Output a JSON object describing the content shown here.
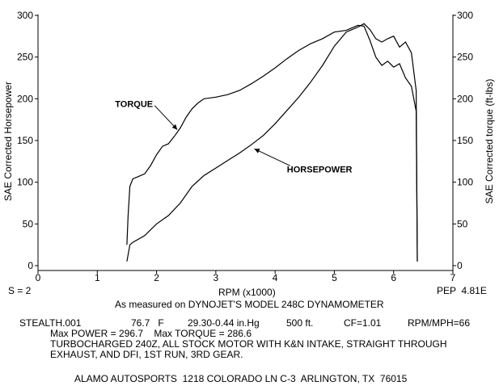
{
  "chart_data": {
    "type": "line",
    "xlabel": "RPM (x1000)",
    "ylabel": "SAE Corrected Horsepower",
    "y2label": "SAE Corrected torque (ft-lbs)",
    "xlim": [
      0,
      7
    ],
    "ylim": [
      0,
      300
    ],
    "y2lim": [
      0,
      300
    ],
    "x_ticks": [
      0,
      1,
      2,
      3,
      4,
      5,
      6,
      7
    ],
    "y_ticks": [
      0,
      50,
      100,
      150,
      200,
      250,
      300
    ],
    "grid": false,
    "series": [
      {
        "name": "TORQUE",
        "x": [
          1.5,
          1.52,
          1.55,
          1.6,
          1.7,
          1.8,
          1.9,
          2.0,
          2.1,
          2.2,
          2.3,
          2.4,
          2.5,
          2.6,
          2.7,
          2.8,
          3.0,
          3.2,
          3.4,
          3.6,
          3.8,
          4.0,
          4.2,
          4.4,
          4.6,
          4.8,
          5.0,
          5.2,
          5.4,
          5.5,
          5.6,
          5.7,
          5.8,
          5.9,
          6.0,
          6.1,
          6.2,
          6.3,
          6.38,
          6.4
        ],
        "values": [
          25,
          60,
          95,
          104,
          107,
          110,
          120,
          133,
          143,
          146,
          155,
          165,
          178,
          188,
          195,
          200,
          202,
          205,
          210,
          218,
          227,
          237,
          248,
          258,
          266,
          272,
          280,
          282,
          288,
          287,
          270,
          250,
          240,
          245,
          238,
          242,
          225,
          215,
          185,
          5
        ]
      },
      {
        "name": "HORSEPOWER",
        "x": [
          1.5,
          1.55,
          1.6,
          1.8,
          2.0,
          2.2,
          2.4,
          2.6,
          2.8,
          3.0,
          3.2,
          3.4,
          3.6,
          3.8,
          4.0,
          4.2,
          4.4,
          4.6,
          4.8,
          5.0,
          5.2,
          5.4,
          5.5,
          5.6,
          5.7,
          5.8,
          5.9,
          6.0,
          6.1,
          6.2,
          6.3,
          6.38,
          6.4
        ],
        "values": [
          5,
          25,
          28,
          36,
          50,
          60,
          75,
          95,
          108,
          117,
          126,
          135,
          145,
          156,
          170,
          186,
          202,
          220,
          240,
          263,
          280,
          286,
          290,
          283,
          272,
          268,
          272,
          275,
          262,
          268,
          255,
          210,
          5
        ]
      }
    ],
    "annotations": [
      {
        "text": "TORQUE",
        "x_text": 1.3,
        "y_text": 190,
        "x_point": 2.35,
        "y_point": 163
      },
      {
        "text": "HORSEPOWER",
        "x_text": 4.2,
        "y_text": 112,
        "x_point": 3.65,
        "y_point": 140
      }
    ]
  },
  "footer": {
    "left_code": "S = 2",
    "pep": "PEP  4.81E",
    "subtitle": "As measured on DYNOJET'S MODEL 248C DYNAMOMETER",
    "run_file": "STEALTH.001",
    "temp": "76.7   F",
    "baro": "29.30-0.44 in.Hg",
    "altitude": "500 ft.",
    "cf": "CF=1.01",
    "rpm_mph": "RPM/MPH=66",
    "max_values": "Max POWER = 296.7    Max TORQUE = 286.6",
    "notes_line1": "TURBOCHARGED 240Z, ALL STOCK MOTOR WITH K&N INTAKE, STRAIGHT THROUGH",
    "notes_line2": "EXHAUST, AND DFI, 1ST RUN, 3RD GEAR.",
    "shop": "ALAMO AUTOSPORTS  1218 COLORADO LN C-3  ARLINGTON, TX  76015"
  }
}
